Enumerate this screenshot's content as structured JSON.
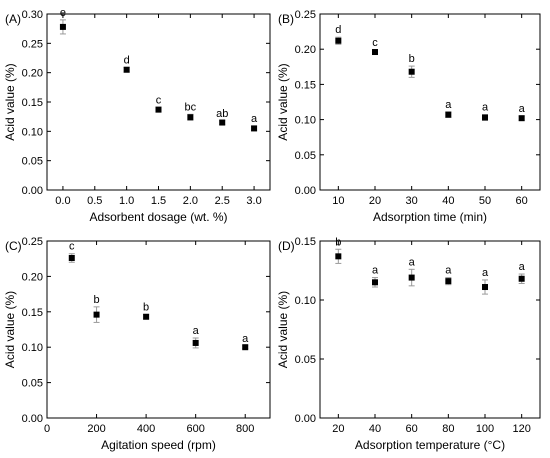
{
  "chart_data": [
    {
      "type": "scatter",
      "panel_label": "(A)",
      "xlabel": "Adsorbent dosage (wt. %)",
      "ylabel": "Acid value (%)",
      "xlim": [
        -0.25,
        3.25
      ],
      "ylim": [
        0,
        0.3
      ],
      "xticks": [
        0.0,
        0.5,
        1.0,
        1.5,
        2.0,
        2.5,
        3.0
      ],
      "xtick_labels": [
        "0.0",
        "0.5",
        "1.0",
        "1.5",
        "2.0",
        "2.5",
        "3.0"
      ],
      "yticks": [
        0,
        0.05,
        0.1,
        0.15,
        0.2,
        0.25,
        0.3
      ],
      "ytick_labels": [
        "0.00",
        "0.05",
        "0.10",
        "0.15",
        "0.20",
        "0.25",
        "0.30"
      ],
      "points": [
        {
          "x": 0.0,
          "y": 0.278,
          "err": 0.012,
          "letter": "e"
        },
        {
          "x": 1.0,
          "y": 0.205,
          "err": 0.004,
          "letter": "d"
        },
        {
          "x": 1.5,
          "y": 0.137,
          "err": 0.004,
          "letter": "c"
        },
        {
          "x": 2.0,
          "y": 0.124,
          "err": 0.005,
          "letter": "bc"
        },
        {
          "x": 2.5,
          "y": 0.115,
          "err": 0.003,
          "letter": "ab"
        },
        {
          "x": 3.0,
          "y": 0.105,
          "err": 0.004,
          "letter": "a"
        }
      ]
    },
    {
      "type": "scatter",
      "panel_label": "(B)",
      "xlabel": "Adsorption time (min)",
      "ylabel": "Acid value (%)",
      "xlim": [
        5,
        65
      ],
      "ylim": [
        0,
        0.25
      ],
      "xticks": [
        10,
        20,
        30,
        40,
        50,
        60
      ],
      "xtick_labels": [
        "10",
        "20",
        "30",
        "40",
        "50",
        "60"
      ],
      "yticks": [
        0,
        0.05,
        0.1,
        0.15,
        0.2,
        0.25
      ],
      "ytick_labels": [
        "0.00",
        "0.05",
        "0.10",
        "0.15",
        "0.20",
        "0.25"
      ],
      "points": [
        {
          "x": 10,
          "y": 0.212,
          "err": 0.005,
          "letter": "d"
        },
        {
          "x": 20,
          "y": 0.196,
          "err": 0.003,
          "letter": "c"
        },
        {
          "x": 30,
          "y": 0.168,
          "err": 0.008,
          "letter": "b"
        },
        {
          "x": 40,
          "y": 0.107,
          "err": 0.004,
          "letter": "a"
        },
        {
          "x": 50,
          "y": 0.103,
          "err": 0.004,
          "letter": "a"
        },
        {
          "x": 60,
          "y": 0.102,
          "err": 0.003,
          "letter": "a"
        }
      ]
    },
    {
      "type": "scatter",
      "panel_label": "(C)",
      "xlabel": "Agitation speed (rpm)",
      "ylabel": "Acid value (%)",
      "xlim": [
        0,
        900
      ],
      "ylim": [
        0,
        0.25
      ],
      "xticks": [
        0,
        200,
        400,
        600,
        800
      ],
      "xtick_labels": [
        "0",
        "200",
        "400",
        "600",
        "800"
      ],
      "yticks": [
        0,
        0.05,
        0.1,
        0.15,
        0.2,
        0.25
      ],
      "ytick_labels": [
        "0.00",
        "0.05",
        "0.10",
        "0.15",
        "0.20",
        "0.25"
      ],
      "points": [
        {
          "x": 100,
          "y": 0.226,
          "err": 0.006,
          "letter": "c"
        },
        {
          "x": 200,
          "y": 0.146,
          "err": 0.011,
          "letter": "b"
        },
        {
          "x": 400,
          "y": 0.143,
          "err": 0.003,
          "letter": "b"
        },
        {
          "x": 600,
          "y": 0.106,
          "err": 0.007,
          "letter": "a"
        },
        {
          "x": 800,
          "y": 0.1,
          "err": 0.002,
          "letter": "a"
        }
      ]
    },
    {
      "type": "scatter",
      "panel_label": "(D)",
      "xlabel": "Adsorption temperature (°C)",
      "ylabel": "Acid value (%)",
      "xlim": [
        10,
        130
      ],
      "ylim": [
        0,
        0.15
      ],
      "xticks": [
        20,
        40,
        60,
        80,
        100,
        120
      ],
      "xtick_labels": [
        "20",
        "40",
        "60",
        "80",
        "100",
        "120"
      ],
      "yticks": [
        0,
        0.05,
        0.1,
        0.15
      ],
      "ytick_labels": [
        "0.00",
        "0.05",
        "0.10",
        "0.15"
      ],
      "points": [
        {
          "x": 20,
          "y": 0.137,
          "err": 0.006,
          "letter": "b"
        },
        {
          "x": 40,
          "y": 0.115,
          "err": 0.004,
          "letter": "a"
        },
        {
          "x": 60,
          "y": 0.119,
          "err": 0.007,
          "letter": "a"
        },
        {
          "x": 80,
          "y": 0.116,
          "err": 0.003,
          "letter": "a"
        },
        {
          "x": 100,
          "y": 0.111,
          "err": 0.006,
          "letter": "a"
        },
        {
          "x": 120,
          "y": 0.118,
          "err": 0.004,
          "letter": "a"
        }
      ]
    }
  ]
}
